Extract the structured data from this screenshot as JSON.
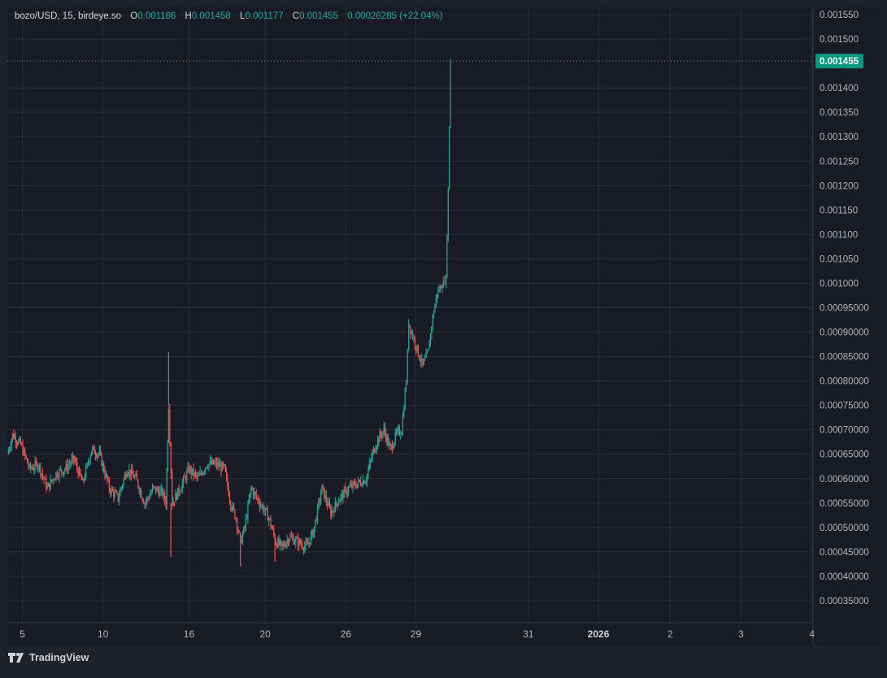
{
  "legend": {
    "symbol": "bozo/USD, 15, birdeye.so",
    "o_key": "O",
    "o_val": "0.001186",
    "h_key": "H",
    "h_val": "0.001458",
    "l_key": "L",
    "l_val": "0.001177",
    "c_key": "C",
    "c_val": "0.001455",
    "change": "0.00026285 (+22.04%)"
  },
  "branding": {
    "label": "TradingView",
    "icon": "tradingview-logo-icon"
  },
  "colors": {
    "background": "#181b25",
    "frame": "#1e222d",
    "grid": "#2a2e39",
    "up": "#26a69a",
    "down": "#ef5350",
    "price_label": "#089981",
    "text": "#b2b5be"
  },
  "chart_data": {
    "type": "candlestick",
    "price_axis": {
      "ylim": [
        0.000305,
        0.001565
      ],
      "tick_labels": [
        "0.001550",
        "0.001500",
        "0.001455",
        "0.001400",
        "0.001350",
        "0.001300",
        "0.001250",
        "0.001200",
        "0.001150",
        "0.001100",
        "0.001050",
        "0.001000",
        "0.00095000",
        "0.00090000",
        "0.00085000",
        "0.00080000",
        "0.00075000",
        "0.00070000",
        "0.00065000",
        "0.00060000",
        "0.00055000",
        "0.00050000",
        "0.00045000",
        "0.00040000",
        "0.00035000"
      ],
      "last_price": 0.001455,
      "last_price_label": "0.001455"
    },
    "time_axis": {
      "labels": [
        "5",
        "10",
        "16",
        "20",
        "26",
        "29",
        "31",
        "2026",
        "2",
        "3",
        "4"
      ],
      "bold": [
        "2026"
      ]
    },
    "anchors": [
      [
        0,
        0.00065,
        "up"
      ],
      [
        0.6,
        0.00069,
        "up"
      ],
      [
        1.5,
        0.00067,
        "down"
      ],
      [
        2.5,
        0.00062,
        "down"
      ],
      [
        3.5,
        0.00063,
        "up"
      ],
      [
        4.5,
        0.00058,
        "down"
      ],
      [
        5.5,
        0.00061,
        "up"
      ],
      [
        6.5,
        0.00062,
        "up"
      ],
      [
        7.5,
        0.00064,
        "up"
      ],
      [
        8.5,
        0.00059,
        "down"
      ],
      [
        9.5,
        0.00066,
        "up"
      ],
      [
        10.4,
        0.00065,
        "down"
      ],
      [
        11.5,
        0.00058,
        "down"
      ],
      [
        12.5,
        0.00056,
        "down"
      ],
      [
        13.5,
        0.00062,
        "up"
      ],
      [
        14.5,
        0.0006,
        "down"
      ],
      [
        15.5,
        0.00055,
        "down"
      ],
      [
        16.5,
        0.00058,
        "up"
      ],
      [
        17.5,
        0.00057,
        "down"
      ],
      [
        17.9,
        0.00055,
        "down"
      ],
      [
        18.2,
        0.00075,
        "up"
      ],
      [
        18.6,
        0.00055,
        "down"
      ],
      [
        19.5,
        0.00058,
        "up"
      ],
      [
        20.5,
        0.00062,
        "up"
      ],
      [
        21.5,
        0.0006,
        "down"
      ],
      [
        22.5,
        0.00063,
        "up"
      ],
      [
        23.5,
        0.00063,
        "down"
      ],
      [
        24.5,
        0.00062,
        "down"
      ],
      [
        25.2,
        0.00055,
        "down"
      ],
      [
        25.8,
        0.00052,
        "down"
      ],
      [
        26.3,
        0.00047,
        "down"
      ],
      [
        26.8,
        0.0005,
        "up"
      ],
      [
        27.5,
        0.00058,
        "up"
      ],
      [
        28.5,
        0.00055,
        "down"
      ],
      [
        29.5,
        0.00052,
        "down"
      ],
      [
        30.3,
        0.00047,
        "down"
      ],
      [
        31,
        0.00046,
        "down"
      ],
      [
        31.8,
        0.00048,
        "up"
      ],
      [
        32.8,
        0.00047,
        "down"
      ],
      [
        33.8,
        0.00046,
        "up"
      ],
      [
        34.5,
        0.00049,
        "up"
      ],
      [
        35.5,
        0.00058,
        "up"
      ],
      [
        36.5,
        0.00053,
        "down"
      ],
      [
        37.5,
        0.00056,
        "up"
      ],
      [
        38.5,
        0.00058,
        "up"
      ],
      [
        39.5,
        0.00059,
        "up"
      ],
      [
        40.5,
        0.0006,
        "up"
      ],
      [
        41.2,
        0.00065,
        "up"
      ],
      [
        41.8,
        0.00068,
        "up"
      ],
      [
        42.5,
        0.0007,
        "down"
      ],
      [
        43.2,
        0.00066,
        "down"
      ],
      [
        43.9,
        0.00069,
        "up"
      ],
      [
        44.5,
        0.0007,
        "up"
      ],
      [
        45,
        0.0008,
        "up"
      ],
      [
        45.3,
        0.00092,
        "up"
      ],
      [
        45.6,
        0.0009,
        "down"
      ],
      [
        46.5,
        0.00085,
        "down"
      ],
      [
        46.9,
        0.00083,
        "down"
      ],
      [
        47.5,
        0.00086,
        "up"
      ],
      [
        48,
        0.00093,
        "up"
      ],
      [
        48.5,
        0.00098,
        "up"
      ],
      [
        49.2,
        0.001,
        "up"
      ],
      [
        49.5,
        0.00101,
        "up"
      ],
      [
        49.75,
        0.00119,
        "up"
      ],
      [
        50,
        0.001455,
        "up"
      ]
    ],
    "spikes": [
      [
        18.2,
        0.00086
      ],
      [
        18.45,
        0.00044
      ],
      [
        26.3,
        0.00042
      ],
      [
        30.2,
        0.00043
      ]
    ]
  }
}
